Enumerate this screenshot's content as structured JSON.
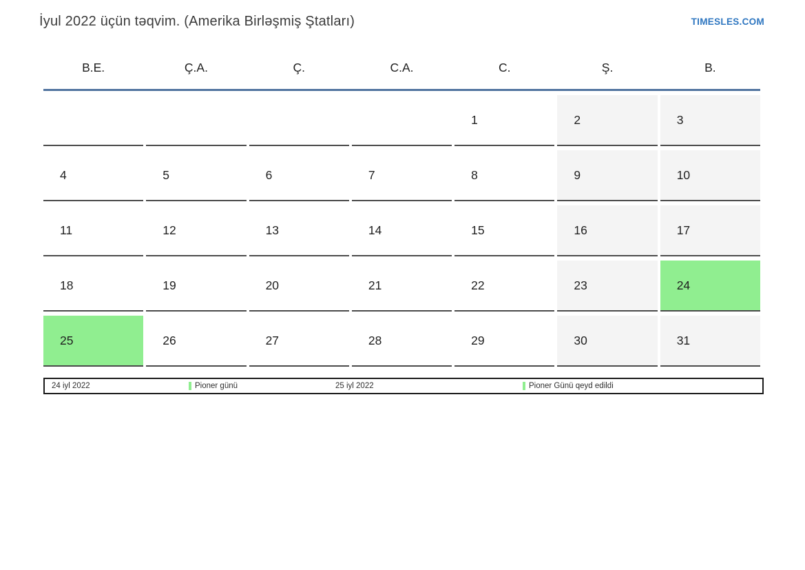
{
  "header": {
    "title": "İyul 2022 üçün təqvim. (Amerika Birləşmiş Ştatları)",
    "site_link": "TIMESLES.COM"
  },
  "calendar": {
    "weekday_headers": [
      "B.E.",
      "Ç.A.",
      "Ç.",
      "C.A.",
      "C.",
      "Ş.",
      "B."
    ],
    "weeks": [
      [
        "",
        "",
        "",
        "",
        "1",
        "2",
        "3"
      ],
      [
        "4",
        "5",
        "6",
        "7",
        "8",
        "9",
        "10"
      ],
      [
        "11",
        "12",
        "13",
        "14",
        "15",
        "16",
        "17"
      ],
      [
        "18",
        "19",
        "20",
        "21",
        "22",
        "23",
        "24"
      ],
      [
        "25",
        "26",
        "27",
        "28",
        "29",
        "30",
        "31"
      ]
    ],
    "weekend_columns": [
      5,
      6
    ],
    "highlighted_days": [
      "24",
      "25"
    ]
  },
  "legend": {
    "items": [
      {
        "kind": "date",
        "text": "24 iyl 2022"
      },
      {
        "kind": "event",
        "text": "Pioner günü"
      },
      {
        "kind": "date",
        "text": "25 iyl 2022"
      },
      {
        "kind": "event",
        "text": "Pioner Günü qeyd edildi"
      }
    ]
  },
  "colors": {
    "holiday_green": "#90ee90",
    "weekend_gray": "#f4f4f4",
    "header_line_blue": "#50739f",
    "link_blue": "#2e76c0",
    "cell_border": "#4a4a4a"
  }
}
